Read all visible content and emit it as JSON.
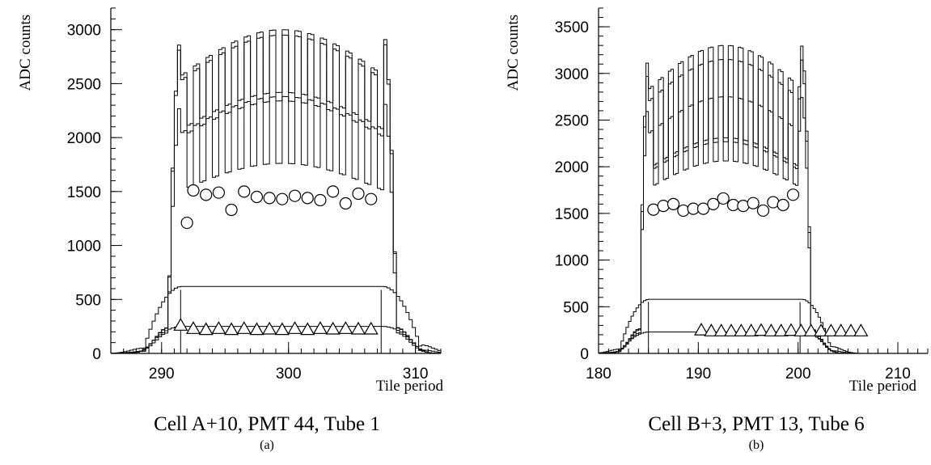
{
  "chart_data": [
    {
      "type": "line",
      "panel_label": "(a)",
      "title": "Cell A+10, PMT 44, Tube 1",
      "xlabel": "Tile period",
      "ylabel": "ADC counts",
      "xlim": [
        286,
        312
      ],
      "ylim": [
        0,
        3200
      ],
      "xticks": [
        290,
        300,
        310
      ],
      "yticks": [
        0,
        500,
        1000,
        1500,
        2000,
        2500,
        3000
      ],
      "plateau": {
        "x_start": 291.5,
        "x_end": 307.3,
        "rise_width": 0.5
      },
      "envelope_series": [
        {
          "kind": "step",
          "peak": 3000,
          "modulation": 0.22
        },
        {
          "kind": "step",
          "peak": 2950,
          "modulation": 0.18
        },
        {
          "kind": "step",
          "peak": 2380,
          "modulation": 0.26
        }
      ],
      "low_series": [
        {
          "kind": "step",
          "level": 620
        },
        {
          "kind": "step",
          "level": 250
        }
      ],
      "circles": {
        "x": [
          292,
          292.5,
          293.5,
          294.5,
          295.5,
          296.5,
          297.5,
          298.5,
          299.5,
          300.5,
          301.5,
          302.5,
          303.5,
          304.5,
          305.5,
          306.5
        ],
        "y": [
          1210,
          1510,
          1470,
          1490,
          1330,
          1500,
          1450,
          1440,
          1430,
          1460,
          1440,
          1420,
          1500,
          1390,
          1480,
          1430
        ]
      },
      "triangles": {
        "x": [
          291.5,
          292.5,
          293.5,
          294.5,
          295.5,
          296.5,
          297.5,
          298.5,
          299.5,
          300.5,
          301.5,
          302.5,
          303.5,
          304.5,
          305.5,
          306.5
        ],
        "y": [
          260,
          230,
          220,
          230,
          220,
          230,
          220,
          225,
          220,
          230,
          220,
          230,
          225,
          230,
          225,
          225
        ]
      }
    },
    {
      "type": "line",
      "panel_label": "(b)",
      "title": "Cell B+3, PMT 13, Tube 6",
      "xlabel": "Tile period",
      "ylabel": "ADC counts",
      "xlim": [
        180,
        213
      ],
      "ylim": [
        0,
        3700
      ],
      "xticks": [
        180,
        190,
        200,
        210
      ],
      "yticks": [
        0,
        500,
        1000,
        1500,
        2000,
        2500,
        3000,
        3500
      ],
      "plateau": {
        "x_start": 185,
        "x_end": 200.2,
        "rise_width": 0.4
      },
      "envelope_series": [
        {
          "kind": "step",
          "peak": 3300,
          "modulation": 0.3
        },
        {
          "kind": "step",
          "peak": 3150,
          "modulation": 0.28
        },
        {
          "kind": "step",
          "peak": 2750,
          "modulation": 0.25
        }
      ],
      "low_series": [
        {
          "kind": "step",
          "level": 580
        },
        {
          "kind": "step",
          "level": 230
        }
      ],
      "circles": {
        "x": [
          185.5,
          186.5,
          187.5,
          188.5,
          189.5,
          190.5,
          191.5,
          192.5,
          193.5,
          194.5,
          195.5,
          196.5,
          197.5,
          198.5,
          199.5
        ],
        "y": [
          1540,
          1580,
          1600,
          1530,
          1550,
          1550,
          1600,
          1660,
          1590,
          1580,
          1610,
          1530,
          1620,
          1590,
          1700
        ]
      },
      "triangles": {
        "x": [
          190.3,
          191.3,
          192.3,
          193.3,
          194.3,
          195.3,
          196.3,
          197.3,
          198.3,
          199.3,
          200.3,
          201.3,
          202.3,
          203.3,
          204.3,
          205.3,
          206.3
        ],
        "y": [
          250,
          240,
          240,
          240,
          240,
          240,
          245,
          240,
          240,
          245,
          240,
          240,
          240,
          240,
          240,
          240,
          240
        ]
      }
    }
  ]
}
